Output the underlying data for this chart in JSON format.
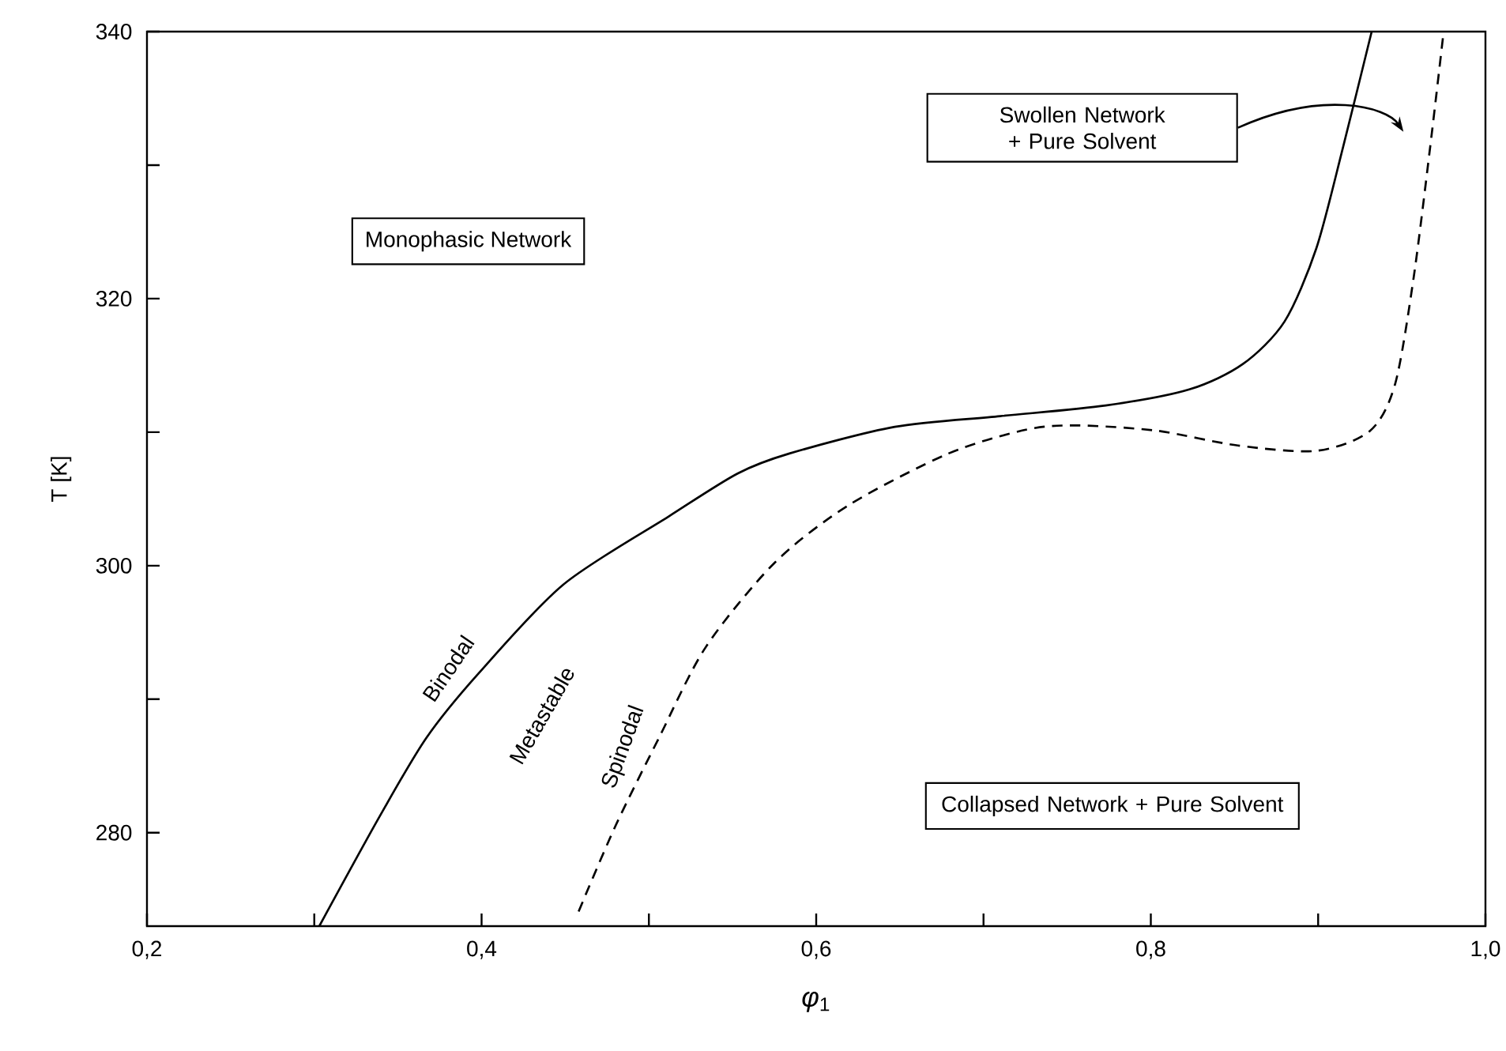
{
  "chart_data": {
    "type": "line",
    "xlabel": "*φ*$_{1}$",
    "ylabel": "T [K]",
    "xlim": [
      0.2,
      1.0
    ],
    "ylim": [
      273,
      340
    ],
    "xticks": [
      {
        "value": 0.2,
        "label": "0,2"
      },
      {
        "value": 0.3,
        "label": null
      },
      {
        "value": 0.4,
        "label": "0,4"
      },
      {
        "value": 0.5,
        "label": null
      },
      {
        "value": 0.6,
        "label": "0,6"
      },
      {
        "value": 0.7,
        "label": null
      },
      {
        "value": 0.8,
        "label": "0,8"
      },
      {
        "value": 0.9,
        "label": null
      },
      {
        "value": 1.0,
        "label": "1,0"
      }
    ],
    "yticks": [
      280,
      {
        "value": 290,
        "label": null
      },
      300,
      {
        "value": 310,
        "label": null
      },
      320,
      {
        "value": 330,
        "label": null
      },
      340
    ],
    "grid": false,
    "marker": "none",
    "series": [
      {
        "name": "Binodal",
        "color": "#000000",
        "line_style": "solid",
        "x": [
          0.303,
          0.339,
          0.367,
          0.398,
          0.449,
          0.512,
          0.553,
          0.584,
          0.647,
          0.71,
          0.773,
          0.823,
          0.855,
          0.88,
          0.899,
          0.915,
          0.932
        ],
        "values": [
          273,
          281.2,
          287.1,
          291.9,
          298.6,
          303.7,
          306.9,
          308.4,
          310.4,
          311.2,
          312.0,
          313.2,
          315.1,
          318.3,
          323.8,
          331.4,
          340
        ]
      },
      {
        "name": "Spinodal",
        "color": "#000000",
        "line_style": "dashed",
        "x": [
          0.458,
          0.48,
          0.506,
          0.534,
          0.575,
          0.619,
          0.679,
          0.726,
          0.757,
          0.804,
          0.852,
          0.899,
          0.931,
          0.946,
          0.957,
          0.967,
          0.975
        ],
        "values": [
          274.1,
          280.5,
          287.1,
          293.9,
          300.2,
          304.5,
          308.4,
          310.2,
          310.5,
          310.1,
          309.0,
          308.6,
          310.1,
          313.6,
          321.5,
          331.4,
          340
        ]
      }
    ],
    "annotations": [
      "Monophasic Network",
      "Swollen Network + Pure Solvent",
      "Collapsed Network + Pure Solvent",
      "Metastable"
    ]
  }
}
